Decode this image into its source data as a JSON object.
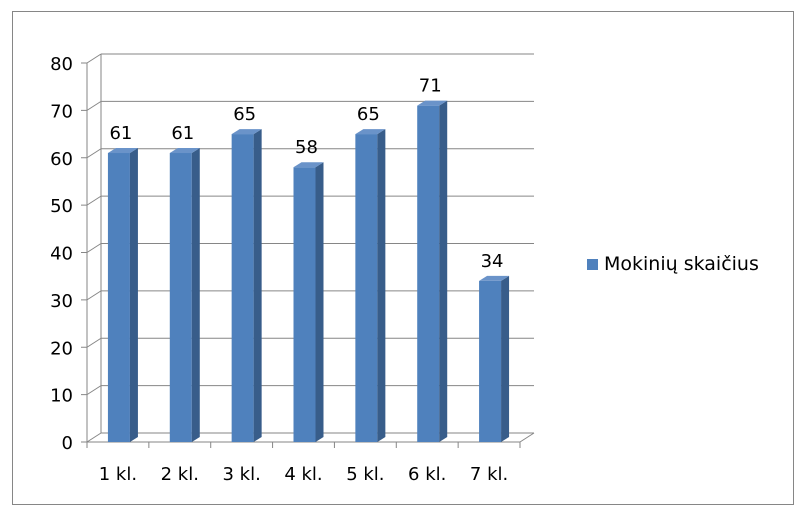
{
  "chart_data": {
    "type": "bar",
    "categories": [
      "1 kl.",
      "2 kl.",
      "3 kl.",
      "4 kl.",
      "5 kl.",
      "6 kl.",
      "7 kl."
    ],
    "series": [
      {
        "name": "Mokinių skaičius",
        "values": [
          61,
          61,
          65,
          58,
          65,
          71,
          34
        ]
      }
    ],
    "yticks": [
      "0",
      "10",
      "20",
      "30",
      "40",
      "50",
      "60",
      "70",
      "80"
    ],
    "ylim": [
      0,
      80
    ],
    "grid": true,
    "style": "3d-column",
    "legend_position": "right",
    "colors": {
      "bar_front": "#4f81bd",
      "bar_side": "#385d8a",
      "bar_top": "#6a93c9",
      "grid": "#868686",
      "text": "#000000"
    }
  }
}
